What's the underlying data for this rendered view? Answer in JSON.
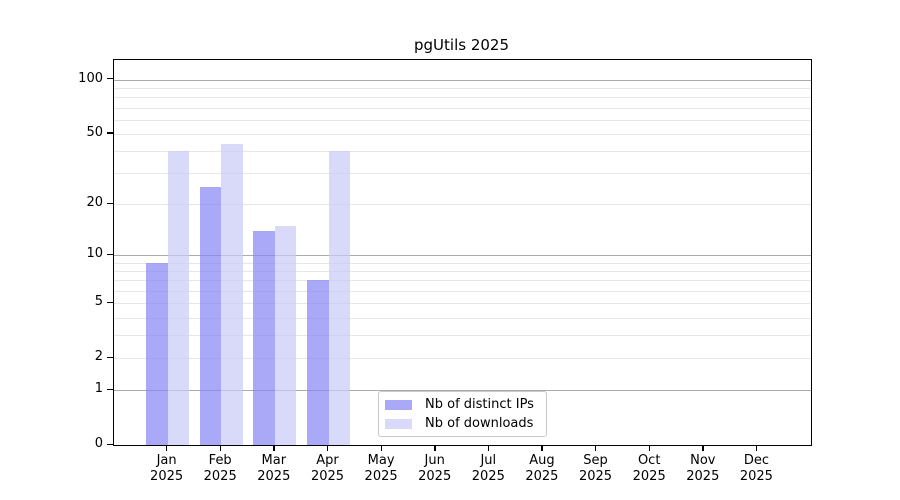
{
  "title": "pgUtils 2025",
  "colors": {
    "ips_bar_fill": "rgba(132,132,243,0.7)",
    "downloads_bar_fill": "rgba(201,201,246,0.7)",
    "ips_swatch": "#a9a9f7",
    "downloads_swatch": "#d9d9f9",
    "grid_minor": "#e7e7e7",
    "grid_major": "#ababab",
    "spine": "#000000",
    "legend_border": "#c9c9c9"
  },
  "chart_data": {
    "type": "bar",
    "title": "pgUtils 2025",
    "x_months": [
      "Jan",
      "Feb",
      "Mar",
      "Apr",
      "May",
      "Jun",
      "Jul",
      "Aug",
      "Sep",
      "Oct",
      "Nov",
      "Dec"
    ],
    "x_year_label": "2025",
    "categories": [
      "Jan 2025",
      "Feb 2025",
      "Mar 2025",
      "Apr 2025",
      "May 2025",
      "Jun 2025",
      "Jul 2025",
      "Aug 2025",
      "Sep 2025",
      "Oct 2025",
      "Nov 2025",
      "Dec 2025"
    ],
    "series": [
      {
        "name": "Nb of distinct IPs",
        "color": "#a9a9f7",
        "values": [
          9,
          25,
          14,
          7,
          null,
          null,
          null,
          null,
          null,
          null,
          null,
          null
        ]
      },
      {
        "name": "Nb of downloads",
        "color": "#d9d9f9",
        "values": [
          40,
          44,
          15,
          40,
          null,
          null,
          null,
          null,
          null,
          null,
          null,
          null
        ]
      }
    ],
    "y_scale": "log(value+1)",
    "y_ticks": [
      0,
      1,
      2,
      5,
      10,
      20,
      50,
      100
    ],
    "y_minor_gridlines": [
      2,
      3,
      4,
      5,
      6,
      7,
      8,
      9,
      20,
      30,
      40,
      50,
      60,
      70,
      80,
      90
    ],
    "y_major_gridlines": [
      1,
      10,
      100
    ],
    "ylim": [
      0,
      128
    ],
    "xlabel": "",
    "ylabel": "",
    "grid": "horizontal",
    "legend_position": "inside lower-center"
  }
}
